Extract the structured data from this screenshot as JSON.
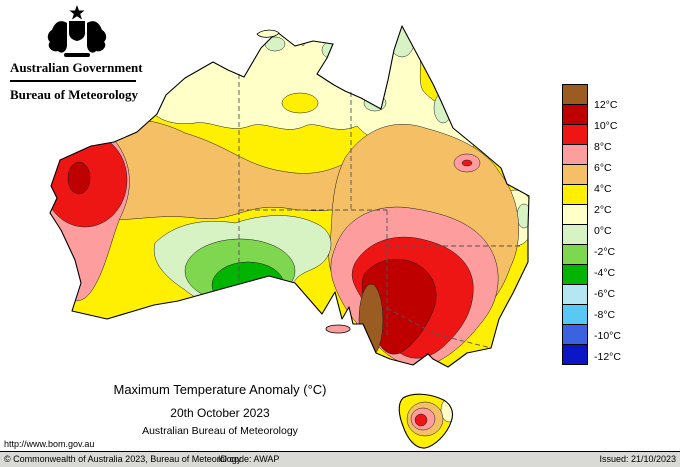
{
  "header": {
    "government": "Australian Government",
    "bureau": "Bureau of Meteorology"
  },
  "titles": {
    "main": "Maximum Temperature Anomaly (°C)",
    "date": "20th October 2023",
    "org": "Australian Bureau of Meteorology"
  },
  "url": "http://www.bom.gov.au",
  "footer": {
    "copyright": "© Commonwealth of Australia 2023, Bureau of Meteorology",
    "id_code": "ID code: AWAP",
    "issued": "Issued: 21/10/2023"
  },
  "legend": {
    "boundary_labels": [
      "12°C",
      "10°C",
      "8°C",
      "6°C",
      "4°C",
      "2°C",
      "0°C",
      "-2°C",
      "-4°C",
      "-6°C",
      "-8°C",
      "-10°C",
      "-12°C"
    ],
    "cell_colors": [
      "#9a5c21",
      "#bf0000",
      "#ee1515",
      "#fd9d9d",
      "#f5bf66",
      "#ffef00",
      "#ffffc8",
      "#d7f2c3",
      "#7fd64f",
      "#00b400",
      "#b5e7f2",
      "#57c9f2",
      "#3b62e0",
      "#0b16c4"
    ]
  },
  "map": {
    "region": "Australia",
    "anomaly_units": "°C",
    "palette": {
      "yellow": "#ffef00",
      "cream": "#ffffc8",
      "mint": "#d7f2c3",
      "lgreen": "#7fd64f",
      "green": "#00b400",
      "tan": "#f5bf66",
      "pink": "#fd9d9d",
      "red": "#ee1515",
      "dred": "#bf0000",
      "brown": "#9a5c21",
      "lblue": "#b5e7f2",
      "cyan": "#57c9f2",
      "blue": "#3b62e0",
      "dblue": "#0b16c4"
    }
  }
}
